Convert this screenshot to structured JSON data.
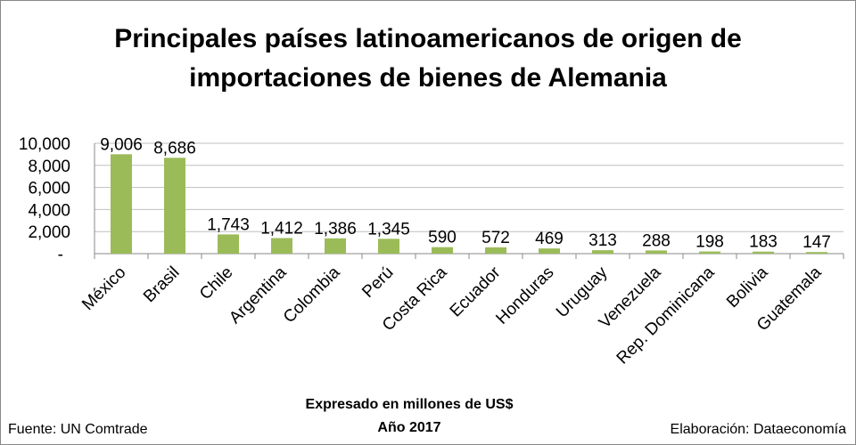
{
  "chart_data": {
    "type": "bar",
    "title_lines": [
      "Principales países latinoamericanos de origen de",
      "importaciones de bienes de Alemania"
    ],
    "categories": [
      "México",
      "Brasil",
      "Chile",
      "Argentina",
      "Colombia",
      "Perú",
      "Costa Rica",
      "Ecuador",
      "Honduras",
      "Uruguay",
      "Venezuela",
      "Rep. Dominicana",
      "Bolivia",
      "Guatemala"
    ],
    "values": [
      9006,
      8686,
      1743,
      1412,
      1386,
      1345,
      590,
      572,
      469,
      313,
      288,
      198,
      183,
      147
    ],
    "data_labels": [
      "9,006",
      "8,686",
      "1,743",
      "1,412",
      "1,386",
      "1,345",
      "590",
      "572",
      "469",
      "313",
      "288",
      "198",
      "183",
      "147"
    ],
    "ylim": [
      0,
      10000
    ],
    "yticks": [
      0,
      2000,
      4000,
      6000,
      8000,
      10000
    ],
    "ytick_labels": [
      "-",
      "2,000",
      "4,000",
      "6,000",
      "8,000",
      "10,000"
    ],
    "grid": true,
    "bar_color": "#9BBB59",
    "xlabel": "Expresado en millones de US$",
    "subtitle_bottom": "Año 2017",
    "source": "Fuente: UN Comtrade",
    "credit": "Elaboración: Dataeconomía"
  }
}
